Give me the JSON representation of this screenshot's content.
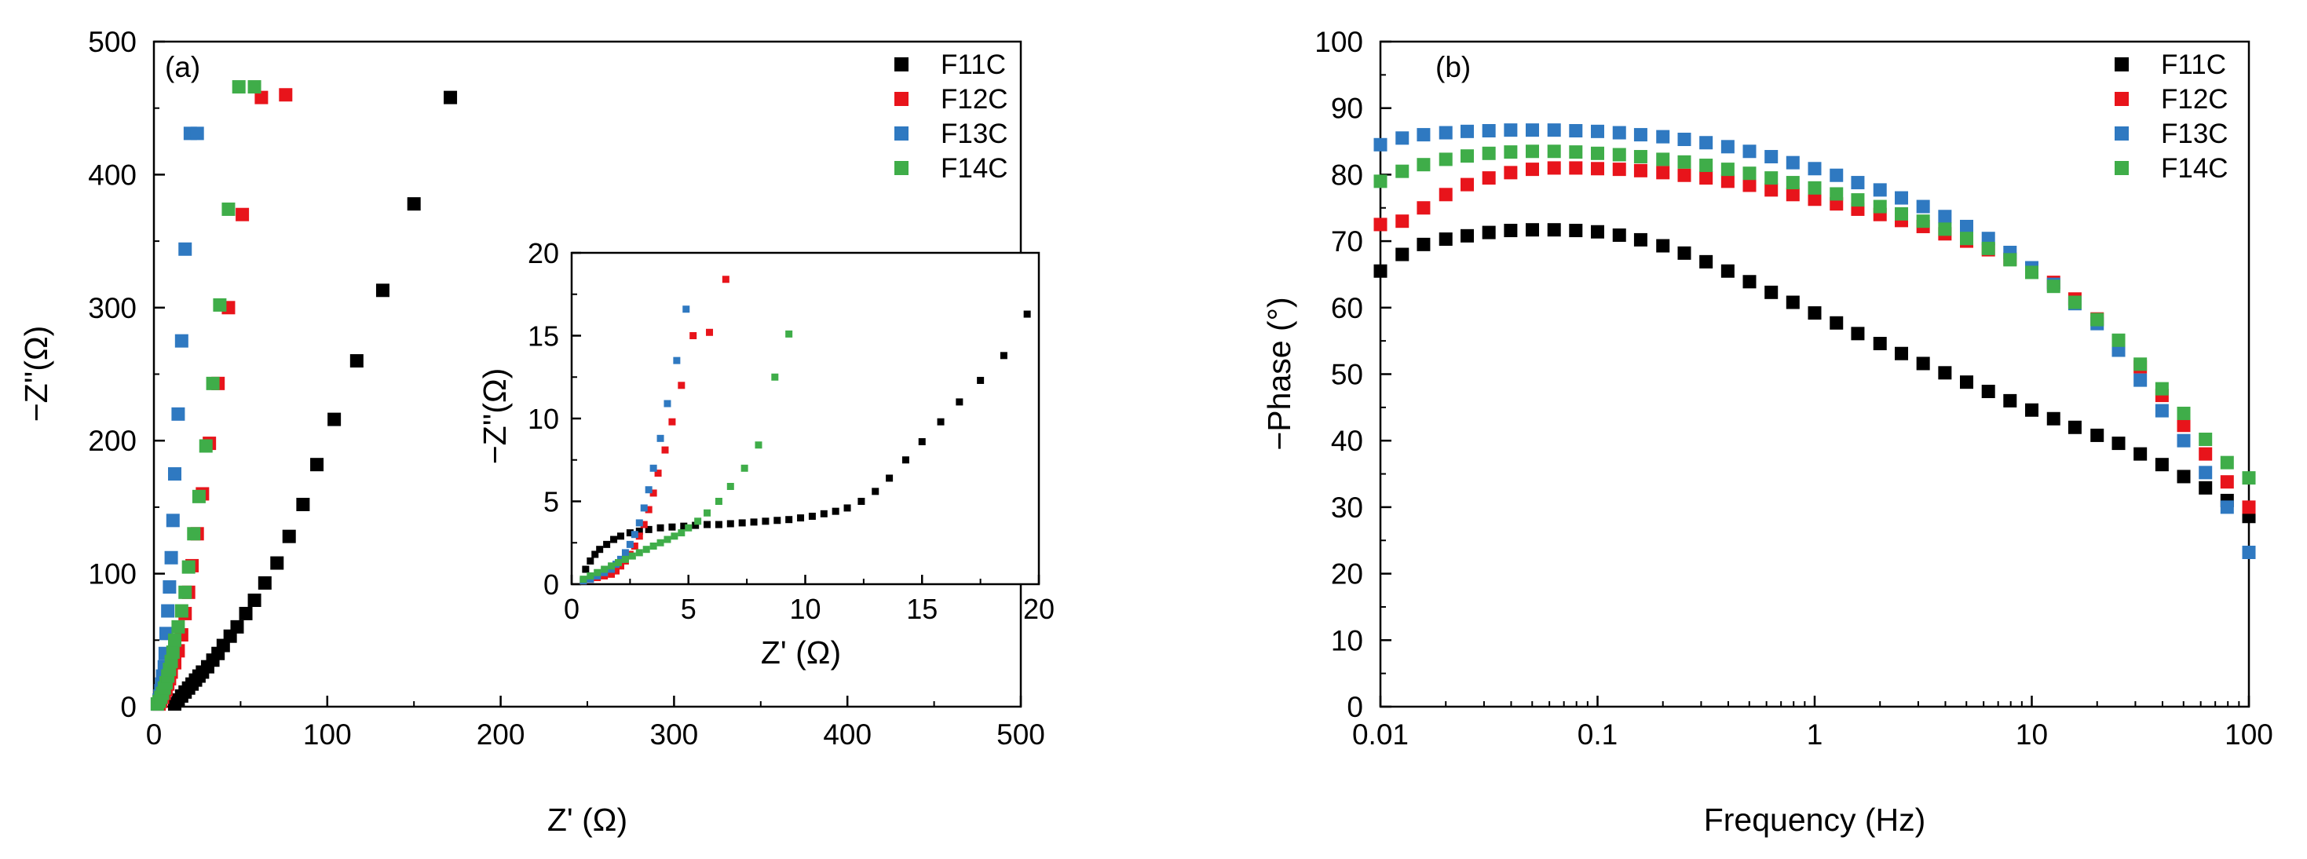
{
  "colors": {
    "F11C": "#000000",
    "F12C": "#e8141b",
    "F13C": "#2f79c1",
    "F14C": "#3fad49"
  },
  "chart_data": [
    {
      "id": "panel-a",
      "type": "scatter",
      "panel_label": "(a)",
      "title": "",
      "xlabel": "Z' (Ω)",
      "ylabel": "−Z''(Ω)",
      "xlim": [
        0,
        500
      ],
      "ylim": [
        0,
        500
      ],
      "xticks": [
        "0",
        "100",
        "200",
        "300",
        "400",
        "500"
      ],
      "yticks": [
        "0",
        "100",
        "200",
        "300",
        "400",
        "500"
      ],
      "legend_position": "top-right",
      "legend": [
        "F11C",
        "F12C",
        "F13C",
        "F14C"
      ],
      "series": [
        {
          "name": "F11C",
          "x": [
            12,
            14,
            16,
            18,
            20,
            22,
            24,
            26,
            28,
            31,
            34,
            37,
            40,
            44,
            48,
            53,
            58,
            64,
            71,
            78,
            86,
            94,
            104,
            117,
            132,
            150,
            171
          ],
          "y": [
            2,
            5,
            8,
            11,
            14,
            17,
            20,
            23,
            26,
            30,
            35,
            40,
            46,
            53,
            60,
            70,
            80,
            93,
            108,
            128,
            152,
            182,
            216,
            260,
            313,
            378,
            458
          ]
        },
        {
          "name": "F12C",
          "x": [
            3,
            4,
            5,
            6,
            7,
            8,
            9,
            10,
            12,
            14,
            16,
            18,
            20,
            22,
            25,
            28,
            32,
            37,
            43,
            51,
            62,
            76
          ],
          "y": [
            2,
            4,
            7,
            10,
            13,
            17,
            21,
            26,
            33,
            42,
            54,
            70,
            86,
            106,
            130,
            160,
            198,
            243,
            300,
            370,
            458,
            460
          ]
        },
        {
          "name": "F13C",
          "x": [
            2,
            3,
            3.5,
            4,
            4.5,
            5,
            6,
            6.5,
            7,
            8,
            9,
            10,
            11,
            12,
            14,
            16,
            18,
            21,
            25
          ],
          "y": [
            2,
            5,
            8,
            12,
            17,
            23,
            30,
            40,
            55,
            72,
            90,
            112,
            140,
            175,
            220,
            275,
            344,
            431,
            431
          ]
        },
        {
          "name": "F14C",
          "x": [
            2,
            3,
            4,
            5,
            6,
            7,
            8,
            9,
            10,
            11,
            12,
            14,
            16,
            18,
            20,
            23,
            26,
            30,
            34,
            38,
            43,
            49,
            58
          ],
          "y": [
            2,
            4,
            7,
            10,
            14,
            18,
            23,
            28,
            34,
            41,
            50,
            60,
            72,
            86,
            105,
            130,
            158,
            196,
            243,
            302,
            374,
            466,
            466
          ]
        }
      ]
    },
    {
      "id": "panel-a-inset",
      "type": "scatter",
      "title": "",
      "xlabel": "Z' (Ω)",
      "ylabel": "−Z''(Ω)",
      "xlim": [
        0,
        20
      ],
      "ylim": [
        0,
        20
      ],
      "xticks": [
        "0",
        "5",
        "10",
        "15",
        "20"
      ],
      "yticks": [
        "0",
        "5",
        "10",
        "15",
        "20"
      ],
      "series": [
        {
          "name": "F11C",
          "x": [
            0.6,
            0.8,
            1.0,
            1.2,
            1.5,
            1.8,
            2.1,
            2.5,
            2.9,
            3.3,
            3.8,
            4.3,
            4.8,
            5.3,
            5.8,
            6.3,
            6.8,
            7.3,
            7.8,
            8.3,
            8.8,
            9.3,
            9.8,
            10.3,
            10.8,
            11.3,
            11.8,
            12.4,
            13.0,
            13.6,
            14.3,
            15.0,
            15.8,
            16.6,
            17.5,
            18.5,
            19.5
          ],
          "y": [
            0.9,
            1.4,
            1.8,
            2.1,
            2.4,
            2.7,
            2.9,
            3.1,
            3.2,
            3.3,
            3.4,
            3.45,
            3.5,
            3.55,
            3.6,
            3.6,
            3.65,
            3.7,
            3.75,
            3.8,
            3.85,
            3.9,
            4.0,
            4.1,
            4.25,
            4.4,
            4.6,
            5.0,
            5.6,
            6.4,
            7.5,
            8.6,
            9.8,
            11.0,
            12.3,
            13.8,
            16.3
          ]
        },
        {
          "name": "F12C",
          "x": [
            0.5,
            0.8,
            1.1,
            1.4,
            1.7,
            1.9,
            2.1,
            2.3,
            2.5,
            2.7,
            2.9,
            3.1,
            3.3,
            3.5,
            3.7,
            4.0,
            4.3,
            4.7,
            5.2,
            5.9,
            6.6
          ],
          "y": [
            0.2,
            0.3,
            0.4,
            0.5,
            0.6,
            0.8,
            1.1,
            1.4,
            1.8,
            2.3,
            2.9,
            3.6,
            4.5,
            5.5,
            6.7,
            8.1,
            9.8,
            12.0,
            15.0,
            15.2,
            18.4
          ]
        },
        {
          "name": "F13C",
          "x": [
            0.5,
            0.8,
            1.1,
            1.4,
            1.7,
            1.9,
            2.1,
            2.3,
            2.5,
            2.7,
            2.9,
            3.1,
            3.3,
            3.5,
            3.8,
            4.1,
            4.5,
            4.9
          ],
          "y": [
            0.2,
            0.3,
            0.5,
            0.7,
            0.9,
            1.2,
            1.5,
            1.9,
            2.4,
            3.0,
            3.7,
            4.6,
            5.7,
            7.0,
            8.8,
            10.9,
            13.5,
            16.6
          ]
        },
        {
          "name": "F14C",
          "x": [
            0.5,
            0.8,
            1.1,
            1.4,
            1.7,
            2.0,
            2.3,
            2.6,
            2.9,
            3.2,
            3.5,
            3.8,
            4.1,
            4.4,
            4.7,
            5.0,
            5.4,
            5.8,
            6.3,
            6.8,
            7.4,
            8.0,
            8.7,
            9.3
          ],
          "y": [
            0.3,
            0.5,
            0.7,
            0.9,
            1.1,
            1.3,
            1.5,
            1.7,
            1.9,
            2.1,
            2.3,
            2.5,
            2.7,
            2.9,
            3.1,
            3.4,
            3.8,
            4.3,
            5.0,
            5.9,
            7.0,
            8.4,
            12.5,
            15.1
          ]
        }
      ]
    },
    {
      "id": "panel-b",
      "type": "scatter",
      "panel_label": "(b)",
      "title": "",
      "xlabel": "Frequency (Hz)",
      "ylabel": "−Phase (°)",
      "xscale": "log",
      "xlim": [
        0.01,
        100
      ],
      "ylim": [
        0,
        100
      ],
      "xticks": [
        "0.01",
        "0.1",
        "1",
        "10",
        "100"
      ],
      "yticks": [
        "0",
        "10",
        "20",
        "30",
        "40",
        "50",
        "60",
        "70",
        "80",
        "90",
        "100"
      ],
      "legend_position": "top-right",
      "legend": [
        "F11C",
        "F12C",
        "F13C",
        "F14C"
      ],
      "x": [
        0.01,
        0.0126,
        0.0158,
        0.02,
        0.0251,
        0.0316,
        0.0398,
        0.0501,
        0.0631,
        0.0794,
        0.1,
        0.126,
        0.158,
        0.2,
        0.251,
        0.316,
        0.398,
        0.501,
        0.631,
        0.794,
        1,
        1.26,
        1.58,
        2,
        2.51,
        3.16,
        3.98,
        5.01,
        6.31,
        7.94,
        10,
        12.6,
        15.8,
        20,
        25.1,
        31.6,
        39.8,
        50.1,
        63.1,
        79.4,
        100
      ],
      "series": [
        {
          "name": "F11C",
          "values": [
            65.5,
            68.0,
            69.5,
            70.3,
            70.8,
            71.3,
            71.6,
            71.7,
            71.7,
            71.6,
            71.4,
            70.9,
            70.2,
            69.3,
            68.2,
            66.9,
            65.5,
            63.9,
            62.3,
            60.8,
            59.2,
            57.7,
            56.1,
            54.6,
            53.1,
            51.6,
            50.2,
            48.8,
            47.4,
            46.0,
            44.6,
            43.3,
            42.0,
            40.8,
            39.6,
            38.0,
            36.4,
            34.6,
            32.9,
            31.0,
            28.6
          ]
        },
        {
          "name": "F12C",
          "values": [
            72.5,
            73.0,
            75.0,
            77.0,
            78.5,
            79.5,
            80.3,
            80.8,
            81.0,
            81.0,
            80.9,
            80.8,
            80.6,
            80.3,
            79.9,
            79.5,
            79.0,
            78.4,
            77.7,
            77.0,
            76.3,
            75.6,
            74.8,
            74.0,
            73.1,
            72.2,
            71.1,
            70.0,
            68.7,
            67.3,
            65.6,
            63.8,
            61.3,
            58.3,
            55.0,
            51.1,
            46.8,
            42.3,
            38.0,
            33.8,
            30.0
          ]
        },
        {
          "name": "F13C",
          "values": [
            84.5,
            85.5,
            86.0,
            86.3,
            86.5,
            86.6,
            86.7,
            86.7,
            86.7,
            86.6,
            86.5,
            86.3,
            86.0,
            85.7,
            85.3,
            84.8,
            84.2,
            83.5,
            82.7,
            81.8,
            80.9,
            79.9,
            78.8,
            77.7,
            76.5,
            75.2,
            73.7,
            72.2,
            70.4,
            68.3,
            66.0,
            63.5,
            60.6,
            57.6,
            53.6,
            49.1,
            44.5,
            40.0,
            35.2,
            30.0,
            23.2
          ]
        },
        {
          "name": "F14C",
          "values": [
            79.0,
            80.5,
            81.5,
            82.3,
            82.8,
            83.2,
            83.4,
            83.5,
            83.5,
            83.4,
            83.2,
            83.0,
            82.7,
            82.3,
            81.9,
            81.4,
            80.8,
            80.2,
            79.5,
            78.8,
            78.0,
            77.1,
            76.2,
            75.2,
            74.1,
            73.0,
            71.8,
            70.4,
            68.9,
            67.2,
            65.3,
            63.2,
            60.8,
            58.2,
            55.1,
            51.5,
            47.8,
            44.1,
            40.2,
            36.7,
            34.4
          ]
        }
      ]
    }
  ]
}
